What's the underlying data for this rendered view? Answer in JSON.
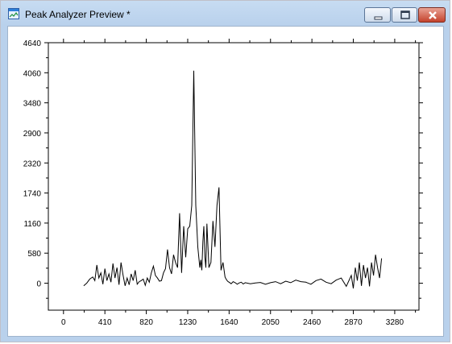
{
  "window": {
    "title": "Peak Analyzer Preview *",
    "controls": {
      "minimize": "minimize",
      "maximize": "maximize",
      "close": "close"
    }
  },
  "colors": {
    "titlebar": "#b9d1ec",
    "close_button": "#c4432d",
    "line": "#000000"
  },
  "chart_data": {
    "type": "line",
    "xlabel": "",
    "ylabel": "",
    "xlim": [
      -150,
      3520
    ],
    "ylim": [
      -520,
      4640
    ],
    "x_ticks": [
      0,
      410,
      820,
      1230,
      1640,
      2050,
      2460,
      2870,
      3280
    ],
    "y_ticks": [
      4640,
      4060,
      3480,
      2900,
      2320,
      1740,
      1160,
      580,
      0
    ],
    "grid": false,
    "series": [
      {
        "x": [
          200,
          230,
          260,
          290,
          310,
          330,
          350,
          370,
          390,
          410,
          430,
          450,
          470,
          490,
          510,
          530,
          550,
          570,
          590,
          610,
          630,
          650,
          670,
          690,
          710,
          730,
          750,
          770,
          790,
          810,
          830,
          850,
          870,
          890,
          910,
          930,
          950,
          970,
          990,
          1010,
          1030,
          1050,
          1070,
          1090,
          1110,
          1130,
          1150,
          1170,
          1190,
          1210,
          1230,
          1250,
          1270,
          1290,
          1310,
          1330,
          1350,
          1360,
          1370,
          1380,
          1390,
          1400,
          1410,
          1420,
          1440,
          1460,
          1480,
          1500,
          1520,
          1540,
          1560,
          1580,
          1600,
          1610,
          1620,
          1630,
          1640,
          1660,
          1680,
          1700,
          1720,
          1740,
          1760,
          1780,
          1800,
          1850,
          1900,
          1950,
          2000,
          2050,
          2100,
          2150,
          2200,
          2250,
          2300,
          2350,
          2400,
          2450,
          2500,
          2550,
          2600,
          2650,
          2700,
          2750,
          2800,
          2850,
          2870,
          2890,
          2910,
          2930,
          2950,
          2970,
          2990,
          3010,
          3030,
          3050,
          3070,
          3090,
          3110,
          3130,
          3150
        ],
        "y": [
          -50,
          0,
          80,
          120,
          50,
          350,
          100,
          200,
          -20,
          280,
          50,
          180,
          20,
          380,
          100,
          300,
          -30,
          400,
          150,
          -50,
          100,
          -30,
          180,
          50,
          250,
          -20,
          30,
          50,
          80,
          -40,
          100,
          20,
          200,
          330,
          150,
          100,
          40,
          50,
          200,
          280,
          650,
          300,
          180,
          550,
          400,
          300,
          1350,
          200,
          1100,
          500,
          1050,
          1100,
          1500,
          4100,
          1500,
          700,
          300,
          450,
          250,
          800,
          1100,
          500,
          300,
          1150,
          300,
          400,
          1200,
          700,
          1500,
          1850,
          250,
          400,
          120,
          80,
          50,
          30,
          20,
          -10,
          30,
          10,
          -20,
          5,
          20,
          -15,
          10,
          -10,
          5,
          15,
          -20,
          10,
          30,
          -10,
          40,
          10,
          60,
          30,
          20,
          -20,
          50,
          80,
          20,
          -10,
          60,
          100,
          -60,
          150,
          -100,
          300,
          50,
          400,
          -50,
          350,
          100,
          300,
          -60,
          400,
          150,
          550,
          300,
          100,
          480
        ]
      }
    ]
  }
}
